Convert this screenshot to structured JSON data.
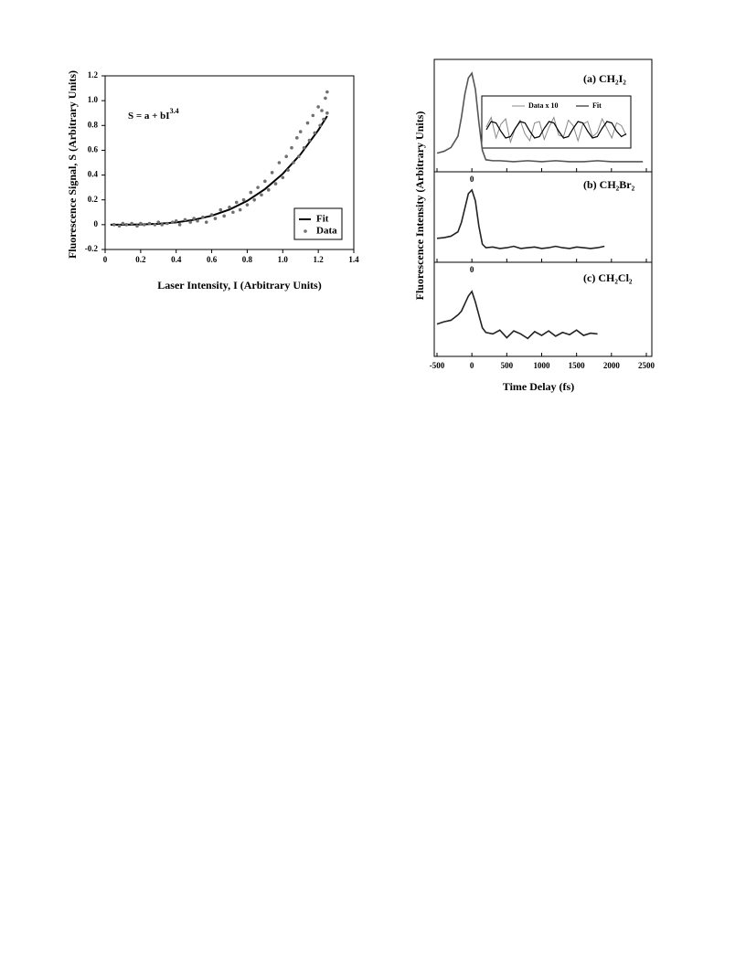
{
  "chart_data": [
    {
      "type": "scatter",
      "annotation": "S = a + bI",
      "annotation_sup": "3.4",
      "x_label": "Laser Intensity, I (Arbitrary Units)",
      "y_label": "Fluorescence Signal, S (Arbitrary Units)",
      "xlim": [
        0,
        1.4
      ],
      "ylim": [
        -0.2,
        1.2
      ],
      "xticks": [
        0,
        0.2,
        0.4,
        0.6,
        0.8,
        {
          "value": 1,
          "label": "1.0"
        },
        1.2,
        1.4
      ],
      "yticks": [
        -0.2,
        0,
        0.2,
        0.4,
        0.6,
        0.8,
        {
          "value": 1,
          "label": "1.0"
        },
        1.2
      ],
      "legend": "lower right",
      "series": [
        {
          "name": "Fit",
          "color": "#000000",
          "style": "line",
          "x": [
            0.03,
            0.1,
            0.2,
            0.3,
            0.4,
            0.5,
            0.6,
            0.7,
            0.8,
            0.9,
            1.0,
            1.1,
            1.2,
            1.25
          ],
          "values": [
            0,
            0,
            0.002,
            0.007,
            0.018,
            0.039,
            0.072,
            0.122,
            0.192,
            0.287,
            0.41,
            0.567,
            0.762,
            0.876
          ]
        },
        {
          "name": "Data",
          "color": "#707070",
          "style": "markers",
          "x": [
            0.05,
            0.08,
            0.1,
            0.12,
            0.15,
            0.18,
            0.2,
            0.22,
            0.25,
            0.28,
            0.3,
            0.32,
            0.35,
            0.38,
            0.4,
            0.42,
            0.45,
            0.48,
            0.5,
            0.52,
            0.55,
            0.57,
            0.6,
            0.62,
            0.65,
            0.67,
            0.7,
            0.72,
            0.74,
            0.76,
            0.78,
            0.8,
            0.82,
            0.84,
            0.86,
            0.88,
            0.9,
            0.92,
            0.94,
            0.96,
            0.98,
            1.0,
            1.02,
            1.03,
            1.05,
            1.06,
            1.08,
            1.09,
            1.1,
            1.12,
            1.14,
            1.15,
            1.17,
            1.18,
            1.2,
            1.21,
            1.22,
            1.23,
            1.24,
            1.25,
            1.25
          ],
          "values": [
            0,
            -0.01,
            0.01,
            0,
            0.01,
            -0.01,
            0.01,
            0,
            0.01,
            0,
            0.02,
            0,
            0.01,
            0.02,
            0.03,
            0,
            0.04,
            0.02,
            0.05,
            0.03,
            0.06,
            0.02,
            0.08,
            0.05,
            0.12,
            0.07,
            0.14,
            0.1,
            0.18,
            0.12,
            0.2,
            0.16,
            0.26,
            0.2,
            0.3,
            0.24,
            0.35,
            0.28,
            0.42,
            0.33,
            0.5,
            0.38,
            0.55,
            0.44,
            0.62,
            0.5,
            0.7,
            0.55,
            0.75,
            0.62,
            0.82,
            0.68,
            0.88,
            0.74,
            0.95,
            0.8,
            0.92,
            0.85,
            1.02,
            0.9,
            1.07
          ]
        }
      ]
    },
    {
      "type": "line",
      "x_label": "Time Delay (fs)",
      "y_label": "Fluorescence Intensity (Arbitrary Units)",
      "xlim": [
        -500,
        2500
      ],
      "xticks": [
        -500,
        0,
        500,
        1000,
        1500,
        2000,
        2500
      ],
      "ylim": [
        0,
        1
      ],
      "panels": [
        {
          "label": "(a) CH₂I₂",
          "color": "#555555",
          "x": [
            -500,
            -400,
            -300,
            -200,
            -150,
            -100,
            -50,
            0,
            50,
            100,
            150,
            200,
            300,
            400,
            600,
            800,
            1000,
            1200,
            1400,
            1600,
            1800,
            2000,
            2200,
            2450
          ],
          "values": [
            0.12,
            0.14,
            0.18,
            0.3,
            0.5,
            0.75,
            0.92,
            0.97,
            0.8,
            0.45,
            0.15,
            0.05,
            0.04,
            0.04,
            0.03,
            0.04,
            0.03,
            0.04,
            0.03,
            0.03,
            0.04,
            0.03,
            0.03,
            0.03
          ],
          "inset": {
            "ylim": [
              -1,
              1
            ],
            "series": [
              {
                "name": "Data x 10",
                "color": "#888888",
                "values": [
                  0.2,
                  0.9,
                  -0.6,
                  0.4,
                  0.8,
                  -0.9,
                  0.1,
                  0.7,
                  -0.3,
                  -0.8,
                  0.5,
                  0.6,
                  -0.7,
                  0.2,
                  0.9,
                  -0.4,
                  -0.5,
                  0.7,
                  0.3,
                  -0.8,
                  0.4,
                  0.6,
                  -0.5,
                  -0.2,
                  0.8,
                  0.1,
                  -0.6,
                  0.5,
                  0.3,
                  -0.4
                ]
              },
              {
                "name": "Fit",
                "color": "#000000",
                "values": [
                  0,
                  0.6,
                  0.5,
                  -0.1,
                  -0.6,
                  -0.5,
                  0.1,
                  0.6,
                  0.5,
                  -0.1,
                  -0.6,
                  -0.5,
                  0.1,
                  0.6,
                  0.5,
                  -0.1,
                  -0.6,
                  -0.5,
                  0.1,
                  0.6,
                  0.5,
                  -0.1,
                  -0.6,
                  -0.5,
                  0.1,
                  0.6,
                  0.5,
                  -0.1,
                  -0.5,
                  -0.3
                ]
              }
            ]
          }
        },
        {
          "label": "(b) CH₂Br₂",
          "marker": "0",
          "color": "#222222",
          "x": [
            -500,
            -400,
            -300,
            -200,
            -150,
            -100,
            -50,
            0,
            50,
            100,
            150,
            200,
            300,
            400,
            500,
            600,
            700,
            800,
            900,
            1000,
            1100,
            1200,
            1300,
            1400,
            1500,
            1600,
            1700,
            1800,
            1900
          ],
          "values": [
            0.23,
            0.24,
            0.26,
            0.32,
            0.45,
            0.65,
            0.85,
            0.9,
            0.75,
            0.4,
            0.15,
            0.1,
            0.11,
            0.09,
            0.1,
            0.12,
            0.09,
            0.1,
            0.11,
            0.09,
            0.1,
            0.12,
            0.1,
            0.09,
            0.11,
            0.1,
            0.09,
            0.1,
            0.12
          ]
        },
        {
          "label": "(c) CH₂Cl₂",
          "marker": "0",
          "color": "#222222",
          "x": [
            -500,
            -400,
            -300,
            -200,
            -150,
            -100,
            -50,
            0,
            50,
            100,
            150,
            200,
            300,
            400,
            500,
            600,
            700,
            800,
            900,
            1000,
            1100,
            1200,
            1300,
            1400,
            1500,
            1600,
            1700,
            1800
          ],
          "values": [
            0.33,
            0.36,
            0.38,
            0.45,
            0.5,
            0.6,
            0.7,
            0.76,
            0.62,
            0.45,
            0.28,
            0.22,
            0.2,
            0.25,
            0.15,
            0.24,
            0.2,
            0.14,
            0.23,
            0.18,
            0.24,
            0.17,
            0.22,
            0.19,
            0.25,
            0.18,
            0.21,
            0.2
          ]
        }
      ]
    }
  ]
}
